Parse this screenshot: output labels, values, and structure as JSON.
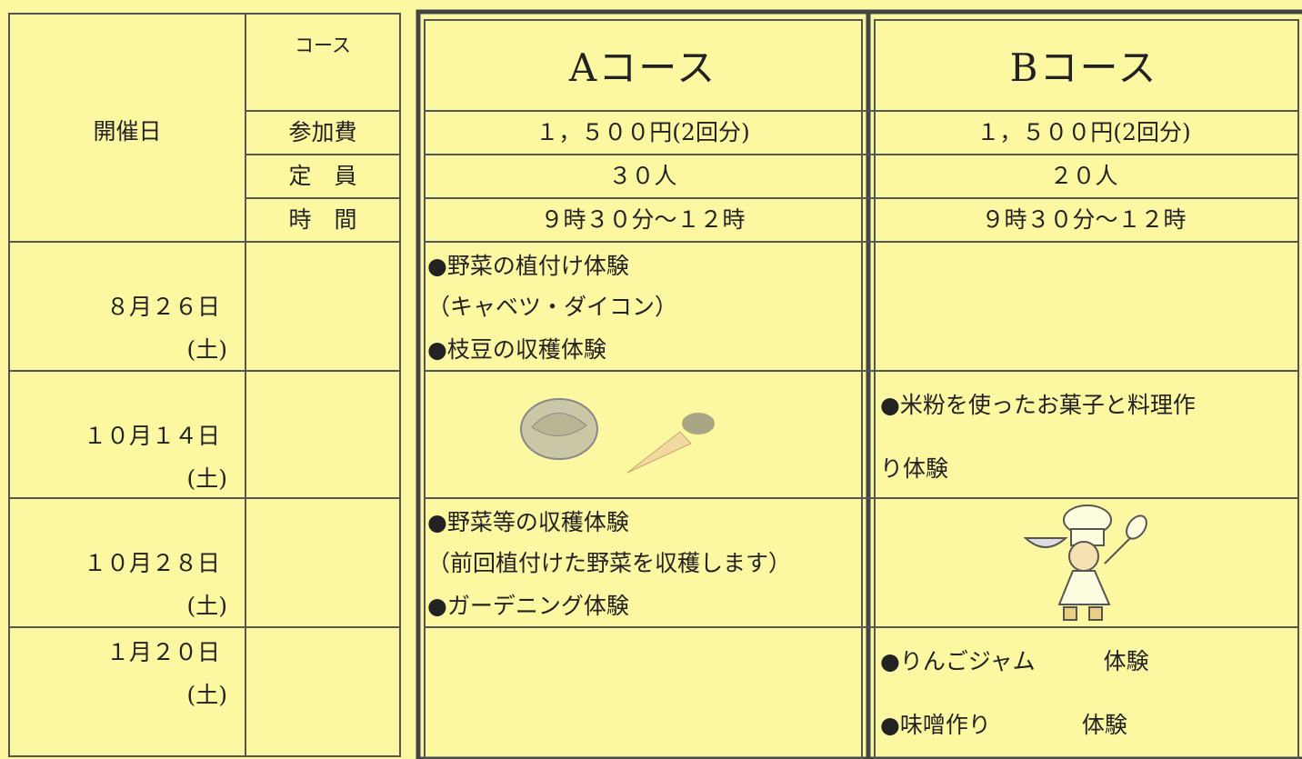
{
  "header": {
    "date_label": "開催日",
    "course_label": "コース",
    "fee_label": "参加費",
    "capacity_label": "定　員",
    "time_label": "時　間"
  },
  "courses": [
    {
      "name": "Aコース",
      "fee": "１，５００円(2回分)",
      "capacity": "３０人",
      "time": "９時３０分～１２時"
    },
    {
      "name": "Bコース",
      "fee": "１，５００円(2回分)",
      "capacity": "２０人",
      "time": "９時３０分～１２時"
    }
  ],
  "rows": [
    {
      "date": "８月２６日",
      "day": "(土)",
      "a": [
        "●野菜の植付け体験",
        "（キャベツ・ダイコン）",
        "●枝豆の収穫体験"
      ],
      "b": []
    },
    {
      "date": "１０月１４日",
      "day": "(土)",
      "a": [],
      "b": [
        "●米粉を使ったお菓子と料理作",
        "り体験"
      ]
    },
    {
      "date": "１０月２８日",
      "day": "(土)",
      "a": [
        "●野菜等の収穫体験",
        "（前回植付けた野菜を収穫します）",
        "●ガーデニング体験"
      ],
      "b": []
    },
    {
      "date": "１月２０日",
      "day": "(土)",
      "a": [],
      "b": [
        "●りんごジャム　　　体験",
        "●味噌作り　　　　体験"
      ]
    }
  ]
}
